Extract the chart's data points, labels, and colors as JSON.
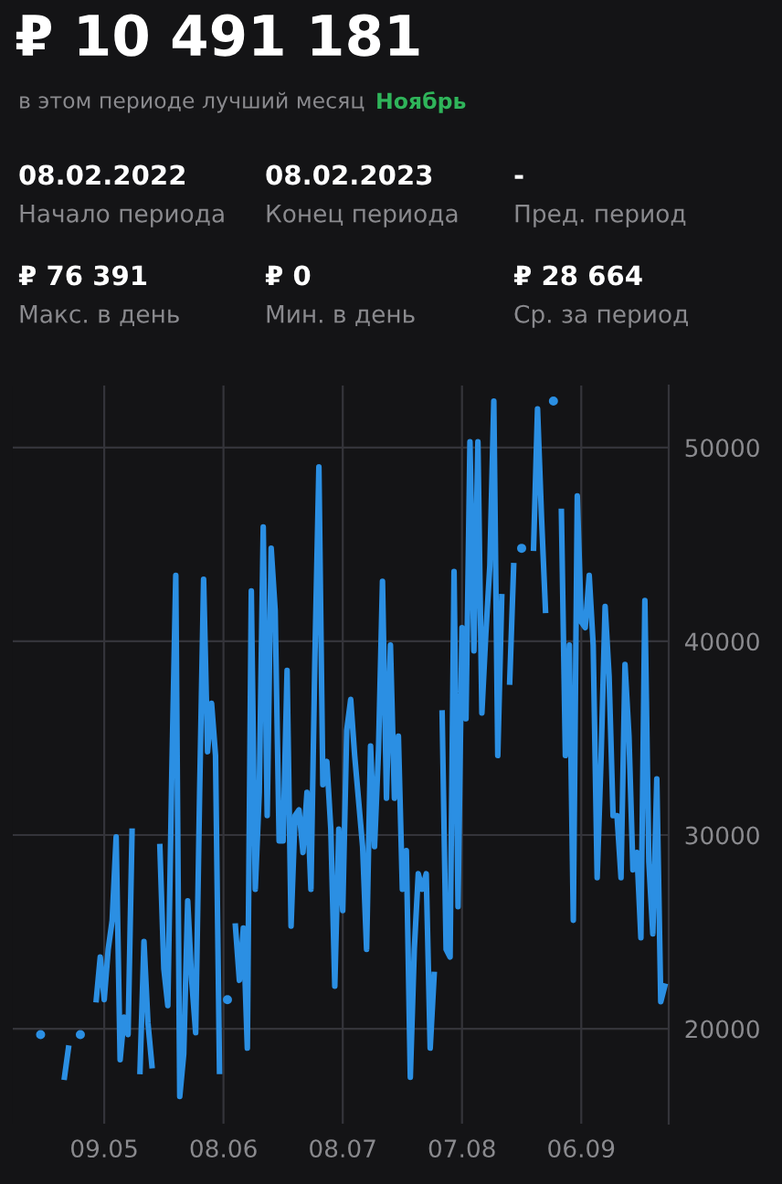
{
  "chart_data": {
    "type": "line",
    "title": "₽ 10 491 181",
    "subtitle": "в этом периоде лучший месяц Ноябрь",
    "annotations": [
      "08.02.2022",
      "Начало периода",
      "08.02.2023",
      "Конец периода",
      "-",
      "Пред. период",
      "₽ 76 391",
      "Макс. в день",
      "₽ 0",
      "Мин. в день",
      "₽ 28 664",
      "Ср. за период"
    ],
    "x": [
      "2022-04-23",
      "2022-04-24",
      "2022-04-29",
      "2022-04-30",
      "2022-05-01",
      "2022-05-03",
      "2022-05-04",
      "2022-05-06",
      "2022-05-07",
      "2022-05-08",
      "2022-05-09",
      "2022-05-10",
      "2022-05-11",
      "2022-05-12",
      "2022-05-13",
      "2022-05-14",
      "2022-05-15",
      "2022-05-16",
      "2022-05-17",
      "2022-05-18",
      "2022-05-19",
      "2022-05-20",
      "2022-05-21",
      "2022-05-22",
      "2022-05-23",
      "2022-05-24",
      "2022-05-25",
      "2022-05-26",
      "2022-05-27",
      "2022-05-28",
      "2022-05-29",
      "2022-05-30",
      "2022-05-31",
      "2022-06-01",
      "2022-06-02",
      "2022-06-03",
      "2022-06-04",
      "2022-06-05",
      "2022-06-06",
      "2022-06-07",
      "2022-06-08",
      "2022-06-09",
      "2022-06-10",
      "2022-06-11",
      "2022-06-12",
      "2022-06-13",
      "2022-06-14",
      "2022-06-15",
      "2022-06-16",
      "2022-06-17",
      "2022-06-18",
      "2022-06-19",
      "2022-06-20",
      "2022-06-21",
      "2022-06-22",
      "2022-06-23",
      "2022-06-24",
      "2022-06-25",
      "2022-06-26",
      "2022-06-27",
      "2022-06-28",
      "2022-06-29",
      "2022-06-30",
      "2022-07-01",
      "2022-07-02",
      "2022-07-03",
      "2022-07-04",
      "2022-07-05",
      "2022-07-06",
      "2022-07-07",
      "2022-07-08",
      "2022-07-09",
      "2022-07-10",
      "2022-07-11",
      "2022-07-13",
      "2022-07-14",
      "2022-07-15",
      "2022-07-16",
      "2022-07-17",
      "2022-07-18",
      "2022-07-19",
      "2022-07-20",
      "2022-07-21",
      "2022-07-22",
      "2022-07-23",
      "2022-07-24",
      "2022-07-25",
      "2022-07-26",
      "2022-07-27",
      "2022-07-28",
      "2022-07-29",
      "2022-07-30",
      "2022-07-31",
      "2022-08-01",
      "2022-08-02",
      "2022-08-03",
      "2022-08-04",
      "2022-08-05",
      "2022-08-06",
      "2022-08-07",
      "2022-08-08",
      "2022-08-09",
      "2022-08-10",
      "2022-08-11",
      "2022-08-12",
      "2022-08-13",
      "2022-08-14",
      "2022-08-15",
      "2022-08-16",
      "2022-08-17",
      "2022-08-18",
      "2022-08-19",
      "2022-08-20",
      "2022-08-21",
      "2022-08-22",
      "2022-08-23",
      "2022-08-24",
      "2022-08-25",
      "2022-08-26",
      "2022-08-27",
      "2022-08-28",
      "2022-08-29",
      "2022-08-30",
      "2022-08-31",
      "2022-09-01",
      "2022-09-02",
      "2022-09-03",
      "2022-09-04",
      "2022-09-05",
      "2022-09-06",
      "2022-09-07",
      "2022-09-08",
      "2022-09-09",
      "2022-09-10",
      "2022-09-11",
      "2022-09-12",
      "2022-09-13",
      "2022-09-14",
      "2022-09-15",
      "2022-09-16",
      "2022-09-17",
      "2022-09-18",
      "2022-09-19",
      "2022-09-20",
      "2022-09-21",
      "2022-09-22",
      "2022-09-23",
      "2022-09-24",
      "2022-09-25",
      "2022-09-26",
      "2022-09-27"
    ],
    "series": [
      {
        "color": "#2b8fe3",
        "values": [
          19700,
          null,
          17500,
          19000,
          null,
          19700,
          null,
          null,
          21500,
          23700,
          21500,
          24100,
          25600,
          29900,
          18400,
          20600,
          19700,
          30200,
          null,
          17800,
          24500,
          20300,
          18100,
          null,
          29400,
          23100,
          21200,
          33200,
          43400,
          16500,
          18700,
          26600,
          22500,
          19800,
          32200,
          43200,
          34300,
          36800,
          34100,
          17800,
          null,
          21500,
          null,
          25300,
          22500,
          25200,
          19000,
          42600,
          27200,
          32200,
          45900,
          31000,
          44800,
          41600,
          29700,
          29700,
          38500,
          25300,
          31000,
          31300,
          29100,
          32200,
          27200,
          39200,
          49000,
          32600,
          33800,
          30300,
          22200,
          30300,
          26100,
          35400,
          37000,
          34100,
          29400,
          24100,
          34600,
          29400,
          34400,
          43100,
          31900,
          39800,
          31900,
          35100,
          27200,
          29200,
          17500,
          24100,
          28000,
          27200,
          28000,
          19000,
          22800,
          null,
          36300,
          24100,
          23700,
          43600,
          26300,
          40700,
          36000,
          50300,
          39500,
          50300,
          36300,
          40400,
          43900,
          52400,
          34100,
          42300,
          null,
          37900,
          43900,
          null,
          44800,
          null,
          null,
          44800,
          52000,
          46400,
          41600,
          null,
          52400,
          null,
          46700,
          34100,
          39800,
          25600,
          47500,
          41000,
          40700,
          43400,
          39800,
          27800,
          34100,
          41800,
          38200,
          31000,
          31000,
          27800,
          38800,
          35100,
          28200,
          29100,
          24700,
          42100,
          28600,
          24900,
          32900,
          21400,
          22200
        ]
      }
    ],
    "xlim": [
      "2022-04-16",
      "2022-09-28"
    ],
    "xticks": [
      {
        "value": "2022-05-09",
        "label": "09.05"
      },
      {
        "value": "2022-06-08",
        "label": "08.06"
      },
      {
        "value": "2022-07-08",
        "label": "08.07"
      },
      {
        "value": "2022-08-07",
        "label": "07.08"
      },
      {
        "value": "2022-09-06",
        "label": "06.09"
      }
    ],
    "ylim": [
      15100,
      53200
    ],
    "yticks": [
      20000,
      30000,
      40000,
      50000
    ],
    "grid": true,
    "line_style": "solid",
    "marker": "none"
  }
}
